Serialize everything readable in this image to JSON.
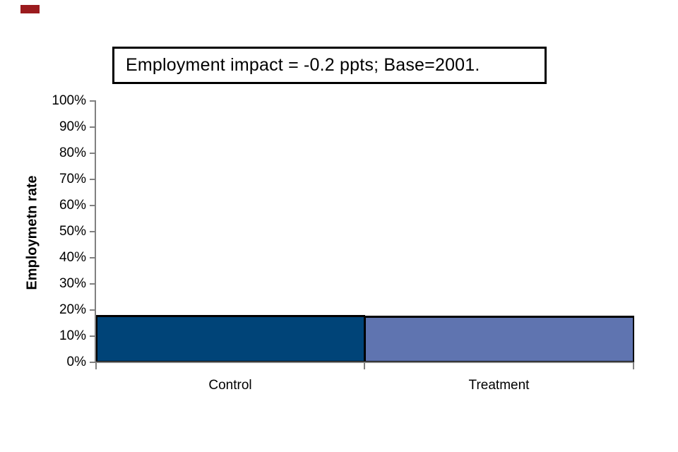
{
  "decorations": {
    "red_marker_color": "#9b1b1e"
  },
  "chart_data": {
    "type": "bar",
    "title": "Employment impact = -0.2 ppts; Base=2001.",
    "categories": [
      "Control",
      "Treatment"
    ],
    "values": [
      18,
      17.8
    ],
    "bar_colors": [
      "#004478",
      "#5f74b0"
    ],
    "xlabel": "",
    "ylabel": "Employmetn rate",
    "ylim": [
      0,
      100
    ],
    "ytick_step": 10,
    "ytick_labels": [
      "0%",
      "10%",
      "20%",
      "30%",
      "40%",
      "50%",
      "60%",
      "70%",
      "80%",
      "90%",
      "100%"
    ],
    "grid": false,
    "legend_position": "none",
    "axis_color": "#808080",
    "bar_border_color": "#000000",
    "text_color": "#000000"
  }
}
